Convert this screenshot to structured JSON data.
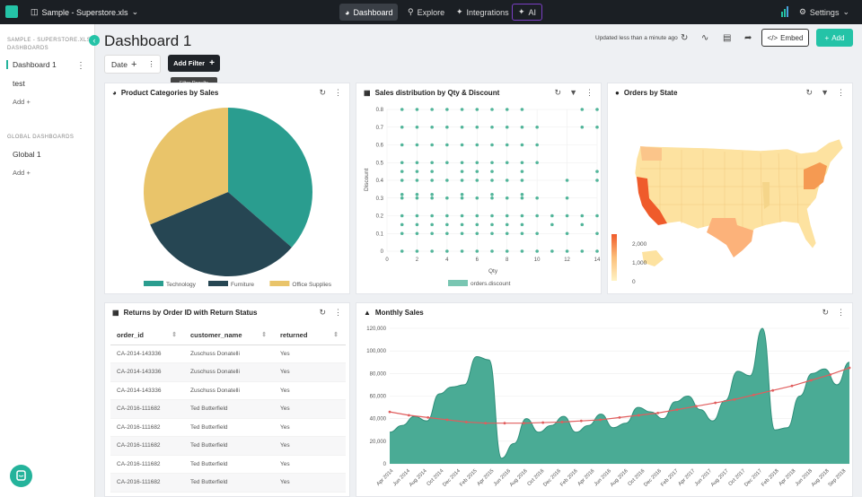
{
  "topbar": {
    "project": "Sample - Superstore.xls",
    "nav": [
      "Dashboard",
      "Explore",
      "Integrations",
      "AI"
    ],
    "settings": "Settings"
  },
  "sidebar": {
    "project_heading": "SAMPLE - SUPERSTORE.XLS",
    "dashboards_heading": "DASHBOARDS",
    "dashboards": [
      "Dashboard 1",
      "test"
    ],
    "add_label": "Add",
    "global_heading": "GLOBAL DASHBOARDS",
    "global_dashboards": [
      "Global 1"
    ],
    "global_add_label": "Add"
  },
  "header": {
    "title": "Dashboard 1",
    "updated": "Updated less than a minute ago",
    "embed_label": "Embed",
    "add_label": "Add"
  },
  "filters": {
    "date_label": "Date",
    "add_filter_label": "Add Filter",
    "tooltip": "Filter Results"
  },
  "cards": {
    "pie_title": "Product Categories by Sales",
    "scatter_title": "Sales distribution by Qty & Discount",
    "map_title": "Orders by State",
    "table_title": "Returns by Order ID with Return Status",
    "line_title": "Monthly Sales"
  },
  "colors": {
    "accent": "#24c3a7",
    "technology": "#2a9d8f",
    "furniture": "#264653",
    "office": "#e9c46a",
    "trend": "#e05d5d"
  },
  "table": {
    "columns": [
      "order_id",
      "customer_name",
      "returned"
    ],
    "rows": [
      [
        "CA-2014-143336",
        "Zuschuss Donatelli",
        "Yes"
      ],
      [
        "CA-2014-143336",
        "Zuschuss Donatelli",
        "Yes"
      ],
      [
        "CA-2014-143336",
        "Zuschuss Donatelli",
        "Yes"
      ],
      [
        "CA-2016-111682",
        "Ted Butterfield",
        "Yes"
      ],
      [
        "CA-2016-111682",
        "Ted Butterfield",
        "Yes"
      ],
      [
        "CA-2016-111682",
        "Ted Butterfield",
        "Yes"
      ],
      [
        "CA-2016-111682",
        "Ted Butterfield",
        "Yes"
      ],
      [
        "CA-2016-111682",
        "Ted Butterfield",
        "Yes"
      ]
    ]
  },
  "map_legend": [
    "2,000",
    "1,000",
    "0"
  ],
  "chart_data": [
    {
      "type": "pie",
      "title": "Product Categories by Sales",
      "slices": [
        {
          "name": "Technology",
          "value": 36.4,
          "color": "#2a9d8f"
        },
        {
          "name": "Furniture",
          "value": 32.3,
          "color": "#264653"
        },
        {
          "name": "Office Supplies",
          "value": 31.3,
          "color": "#e9c46a"
        }
      ]
    },
    {
      "type": "scatter",
      "title": "Sales distribution by Qty & Discount",
      "xlabel": "Qty",
      "ylabel": "Discount",
      "xlim": [
        0,
        14
      ],
      "ylim": [
        0,
        0.8
      ],
      "xticks": [
        0,
        2,
        4,
        6,
        8,
        10,
        12,
        14
      ],
      "yticks": [
        0,
        0.1,
        0.2,
        0.3,
        0.4,
        0.5,
        0.6,
        0.7,
        0.8
      ],
      "series": [
        {
          "name": "orders.discount"
        }
      ],
      "points": [
        [
          1,
          0
        ],
        [
          2,
          0
        ],
        [
          3,
          0
        ],
        [
          4,
          0
        ],
        [
          5,
          0
        ],
        [
          6,
          0
        ],
        [
          7,
          0
        ],
        [
          8,
          0
        ],
        [
          9,
          0
        ],
        [
          10,
          0
        ],
        [
          11,
          0
        ],
        [
          12,
          0
        ],
        [
          13,
          0
        ],
        [
          14,
          0
        ],
        [
          1,
          0.1
        ],
        [
          2,
          0.1
        ],
        [
          3,
          0.1
        ],
        [
          4,
          0.1
        ],
        [
          5,
          0.1
        ],
        [
          6,
          0.1
        ],
        [
          7,
          0.1
        ],
        [
          8,
          0.1
        ],
        [
          9,
          0.1
        ],
        [
          10,
          0.1
        ],
        [
          12,
          0.1
        ],
        [
          14,
          0.1
        ],
        [
          1,
          0.15
        ],
        [
          2,
          0.15
        ],
        [
          3,
          0.15
        ],
        [
          4,
          0.15
        ],
        [
          5,
          0.15
        ],
        [
          6,
          0.15
        ],
        [
          7,
          0.15
        ],
        [
          8,
          0.15
        ],
        [
          9,
          0.15
        ],
        [
          11,
          0.15
        ],
        [
          13,
          0.15
        ],
        [
          1,
          0.2
        ],
        [
          2,
          0.2
        ],
        [
          3,
          0.2
        ],
        [
          4,
          0.2
        ],
        [
          5,
          0.2
        ],
        [
          6,
          0.2
        ],
        [
          7,
          0.2
        ],
        [
          8,
          0.2
        ],
        [
          9,
          0.2
        ],
        [
          10,
          0.2
        ],
        [
          11,
          0.2
        ],
        [
          12,
          0.2
        ],
        [
          13,
          0.2
        ],
        [
          14,
          0.2
        ],
        [
          1,
          0.3
        ],
        [
          2,
          0.3
        ],
        [
          3,
          0.3
        ],
        [
          4,
          0.3
        ],
        [
          5,
          0.3
        ],
        [
          6,
          0.3
        ],
        [
          7,
          0.3
        ],
        [
          8,
          0.3
        ],
        [
          9,
          0.3
        ],
        [
          10,
          0.3
        ],
        [
          12,
          0.3
        ],
        [
          1,
          0.32
        ],
        [
          2,
          0.32
        ],
        [
          3,
          0.32
        ],
        [
          5,
          0.32
        ],
        [
          7,
          0.32
        ],
        [
          9,
          0.32
        ],
        [
          1,
          0.4
        ],
        [
          2,
          0.4
        ],
        [
          3,
          0.4
        ],
        [
          4,
          0.4
        ],
        [
          5,
          0.4
        ],
        [
          6,
          0.4
        ],
        [
          7,
          0.4
        ],
        [
          8,
          0.4
        ],
        [
          9,
          0.4
        ],
        [
          12,
          0.4
        ],
        [
          14,
          0.4
        ],
        [
          1,
          0.45
        ],
        [
          2,
          0.45
        ],
        [
          3,
          0.45
        ],
        [
          5,
          0.45
        ],
        [
          6,
          0.45
        ],
        [
          7,
          0.45
        ],
        [
          9,
          0.45
        ],
        [
          14,
          0.45
        ],
        [
          1,
          0.5
        ],
        [
          2,
          0.5
        ],
        [
          3,
          0.5
        ],
        [
          4,
          0.5
        ],
        [
          5,
          0.5
        ],
        [
          6,
          0.5
        ],
        [
          7,
          0.5
        ],
        [
          8,
          0.5
        ],
        [
          9,
          0.5
        ],
        [
          10,
          0.5
        ],
        [
          1,
          0.6
        ],
        [
          2,
          0.6
        ],
        [
          3,
          0.6
        ],
        [
          4,
          0.6
        ],
        [
          5,
          0.6
        ],
        [
          6,
          0.6
        ],
        [
          7,
          0.6
        ],
        [
          8,
          0.6
        ],
        [
          9,
          0.6
        ],
        [
          10,
          0.6
        ],
        [
          1,
          0.7
        ],
        [
          2,
          0.7
        ],
        [
          3,
          0.7
        ],
        [
          4,
          0.7
        ],
        [
          5,
          0.7
        ],
        [
          6,
          0.7
        ],
        [
          7,
          0.7
        ],
        [
          8,
          0.7
        ],
        [
          9,
          0.7
        ],
        [
          10,
          0.7
        ],
        [
          13,
          0.7
        ],
        [
          14,
          0.7
        ],
        [
          1,
          0.8
        ],
        [
          2,
          0.8
        ],
        [
          3,
          0.8
        ],
        [
          4,
          0.8
        ],
        [
          5,
          0.8
        ],
        [
          6,
          0.8
        ],
        [
          7,
          0.8
        ],
        [
          8,
          0.8
        ],
        [
          9,
          0.8
        ],
        [
          13,
          0.8
        ],
        [
          14,
          0.8
        ]
      ]
    },
    {
      "type": "area",
      "title": "Monthly Sales",
      "ylim": [
        0,
        120000
      ],
      "yticks": [
        0,
        20000,
        40000,
        60000,
        80000,
        100000,
        120000
      ],
      "ytick_labels": [
        "0",
        "20,000",
        "40,000",
        "60,000",
        "80,000",
        "100,000",
        "120,000"
      ],
      "xtick_labels": [
        "Apr 2014",
        "Jun 2014",
        "Aug 2014",
        "Oct 2014",
        "Dec 2014",
        "Feb 2015",
        "Apr 2015",
        "Jun 2016",
        "Aug 2016",
        "Oct 2016",
        "Dec 2016",
        "Feb 2016",
        "Apr 2016",
        "Jun 2016",
        "Aug 2016",
        "Oct 2016",
        "Dec 2016",
        "Feb 2017",
        "Apr 2017",
        "Jun 2017",
        "Aug 2017",
        "Oct 2017",
        "Dec 2017",
        "Feb 2018",
        "Apr 2018",
        "Jun 2018",
        "Aug 2018",
        "Sep 2018"
      ],
      "series": [
        {
          "values": [
            28000,
            34000,
            42000,
            38000,
            62000,
            68000,
            70000,
            95000,
            92000,
            5000,
            18000,
            40000,
            28000,
            34000,
            42000,
            28000,
            34000,
            44000,
            32000,
            36000,
            50000,
            46000,
            40000,
            55000,
            60000,
            48000,
            38000,
            56000,
            82000,
            78000,
            120000,
            30000,
            32000,
            60000,
            80000,
            84000,
            70000,
            90000
          ]
        },
        {
          "values": [
            46000,
            43000,
            41000,
            39000,
            37000,
            36000,
            36000,
            36000,
            36500,
            37000,
            38000,
            39000,
            41000,
            43000,
            45000,
            48000,
            51000,
            54000,
            57000,
            61000,
            65000,
            69000,
            74000,
            79000,
            85000
          ]
        }
      ]
    }
  ]
}
